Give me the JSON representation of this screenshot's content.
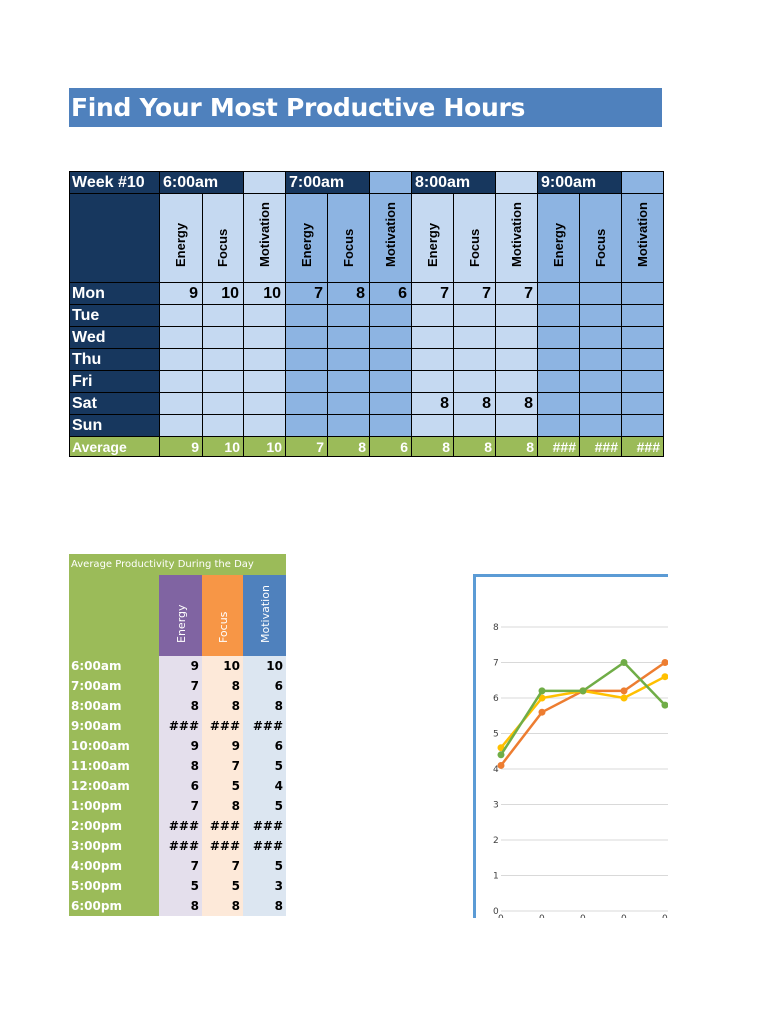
{
  "title": "Find Your Most Productive Hours",
  "week_table": {
    "week_label": "Week #10",
    "time_slots": [
      "6:00am",
      "7:00am",
      "8:00am",
      "9:00am"
    ],
    "metrics": [
      "Energy",
      "Focus",
      "Motivation"
    ],
    "days": [
      {
        "day": "Mon",
        "values": [
          "9",
          "10",
          "10",
          "7",
          "8",
          "6",
          "7",
          "7",
          "7",
          "",
          "",
          ""
        ]
      },
      {
        "day": "Tue",
        "values": [
          "",
          "",
          "",
          "",
          "",
          "",
          "",
          "",
          "",
          "",
          "",
          ""
        ]
      },
      {
        "day": "Wed",
        "values": [
          "",
          "",
          "",
          "",
          "",
          "",
          "",
          "",
          "",
          "",
          "",
          ""
        ]
      },
      {
        "day": "Thu",
        "values": [
          "",
          "",
          "",
          "",
          "",
          "",
          "",
          "",
          "",
          "",
          "",
          ""
        ]
      },
      {
        "day": "Fri",
        "values": [
          "",
          "",
          "",
          "",
          "",
          "",
          "",
          "",
          "",
          "",
          "",
          ""
        ]
      },
      {
        "day": "Sat",
        "values": [
          "",
          "",
          "",
          "",
          "",
          "",
          "8",
          "8",
          "8",
          "",
          "",
          ""
        ]
      },
      {
        "day": "Sun",
        "values": [
          "",
          "",
          "",
          "",
          "",
          "",
          "",
          "",
          "",
          "",
          "",
          ""
        ]
      }
    ],
    "average_label": "Average",
    "averages": [
      "9",
      "10",
      "10",
      "7",
      "8",
      "6",
      "8",
      "8",
      "8",
      "###",
      "###",
      "###"
    ]
  },
  "avg_table": {
    "title": "Average Productivity During the Day",
    "headers": [
      "Energy",
      "Focus",
      "Motivation"
    ],
    "rows": [
      {
        "time": "6:00am",
        "energy": "9",
        "focus": "10",
        "motivation": "10"
      },
      {
        "time": "7:00am",
        "energy": "7",
        "focus": "8",
        "motivation": "6"
      },
      {
        "time": "8:00am",
        "energy": "8",
        "focus": "8",
        "motivation": "8"
      },
      {
        "time": "9:00am",
        "energy": "###",
        "focus": "###",
        "motivation": "###"
      },
      {
        "time": "10:00am",
        "energy": "9",
        "focus": "9",
        "motivation": "6"
      },
      {
        "time": "11:00am",
        "energy": "8",
        "focus": "7",
        "motivation": "5"
      },
      {
        "time": "12:00am",
        "energy": "6",
        "focus": "5",
        "motivation": "4"
      },
      {
        "time": "1:00pm",
        "energy": "7",
        "focus": "8",
        "motivation": "5"
      },
      {
        "time": "2:00pm",
        "energy": "###",
        "focus": "###",
        "motivation": "###"
      },
      {
        "time": "3:00pm",
        "energy": "###",
        "focus": "###",
        "motivation": "###"
      },
      {
        "time": "4:00pm",
        "energy": "7",
        "focus": "7",
        "motivation": "5"
      },
      {
        "time": "5:00pm",
        "energy": "5",
        "focus": "5",
        "motivation": "3"
      },
      {
        "time": "6:00pm",
        "energy": "8",
        "focus": "8",
        "motivation": "8"
      }
    ]
  },
  "colors": {
    "title_bg": "#4f81bd",
    "navy": "#17375e",
    "light_blue": "#c5d9f1",
    "mid_blue": "#8db4e2",
    "green": "#9bbb59",
    "energy": "#8064a2",
    "focus": "#f79646",
    "motivation": "#4f81bd",
    "chart_orange": "#ed7d31",
    "chart_yellow": "#ffc000",
    "chart_green": "#70ad47",
    "chart_border": "#5b9bd5"
  },
  "chart_data": {
    "type": "line",
    "title": "",
    "xlabel": "",
    "ylabel": "",
    "ylim": [
      0,
      8
    ],
    "yticks": [
      "0",
      "1",
      "2",
      "3",
      "4",
      "5",
      "6",
      "7",
      "8"
    ],
    "categories": [
      "0",
      "0",
      "0",
      "0",
      "0"
    ],
    "grid": true,
    "series": [
      {
        "name": "orange",
        "color": "#ed7d31",
        "values": [
          4.1,
          5.6,
          6.2,
          6.2,
          7.0
        ]
      },
      {
        "name": "yellow",
        "color": "#ffc000",
        "values": [
          4.6,
          6.0,
          6.2,
          6.0,
          6.6
        ]
      },
      {
        "name": "green",
        "color": "#70ad47",
        "values": [
          4.4,
          6.2,
          6.2,
          7.0,
          5.8
        ]
      }
    ]
  }
}
